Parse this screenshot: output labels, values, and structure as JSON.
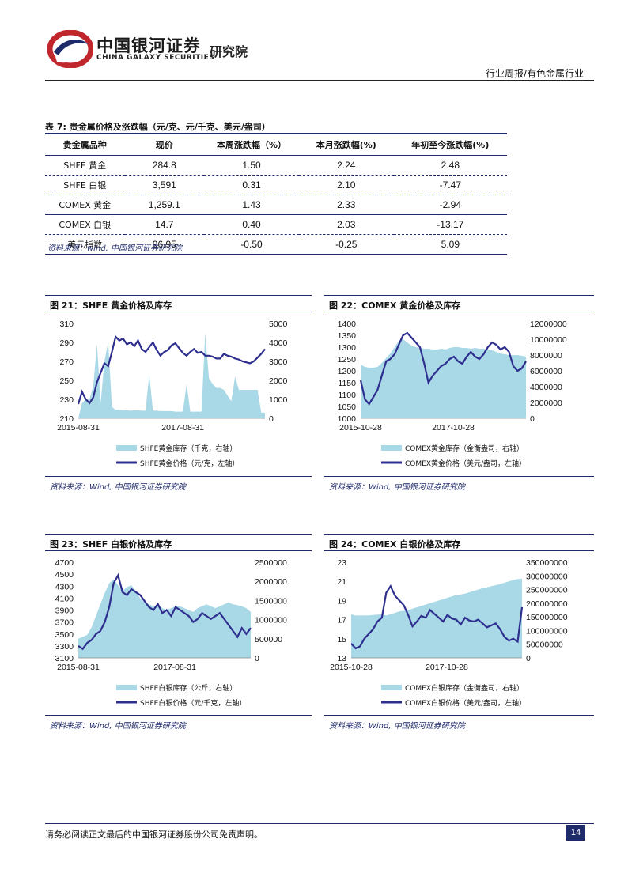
{
  "header": {
    "brand_cn": "中国银河证券",
    "brand_en": "CHINA GALAXY SECURITIES",
    "institute": "研究院",
    "report_type": "行业周报/有色金属行业"
  },
  "table": {
    "caption": "表 7: 贵金属价格及涨跌幅（元/克、元/千克、美元/盎司）",
    "headers": [
      "贵金属品种",
      "现价",
      "本周涨跌幅（%）",
      "本月涨跌幅(%)",
      "年初至今涨跌幅(%)"
    ],
    "rows": [
      [
        "SHFE 黄金",
        "284.8",
        "1.50",
        "2.24",
        "2.48"
      ],
      [
        "SHFE 白银",
        "3,591",
        "0.31",
        "2.10",
        "-7.47"
      ],
      [
        "COMEX 黄金",
        "1,259.1",
        "1.43",
        "2.33",
        "-2.94"
      ],
      [
        "COMEX 白银",
        "14.7",
        "0.40",
        "2.03",
        "-13.17"
      ],
      [
        "美元指数",
        "96.95",
        "-0.50",
        "-0.25",
        "5.09"
      ]
    ],
    "source": "资料来源：wind, 中国银河证券研究院"
  },
  "figures": [
    {
      "title": "图 21：SHFE 黄金价格及库存",
      "source": "资料来源：Wind, 中国银河证券研究院",
      "legend_area": "SHFE黄金库存（千克，右轴）",
      "legend_line": "SHFE黄金价格（元/克，左轴）",
      "chart_data": {
        "type": "line",
        "left_axis": {
          "ticks": [
            "310",
            "290",
            "270",
            "250",
            "230",
            "210"
          ],
          "range": [
            210,
            310
          ]
        },
        "right_axis": {
          "ticks": [
            "5000",
            "4000",
            "3000",
            "2000",
            "1000",
            "0"
          ],
          "range": [
            0,
            5000
          ]
        },
        "x_ticks": [
          "2015-08-31",
          "2017-08-31"
        ],
        "series": [
          {
            "name": "SHFE黄金库存（千克，右轴）",
            "kind": "area",
            "values": [
              0,
              800,
              1000,
              1000,
              1700,
              3900,
              800,
              3000,
              4000,
              600,
              450,
              450,
              420,
              420,
              400,
              420,
              420,
              400,
              400,
              2300,
              400,
              400,
              380,
              380,
              380,
              380,
              350,
              350,
              350,
              1800,
              350,
              350,
              350,
              350,
              4500,
              2100,
              1800,
              1600,
              1600,
              1500,
              1200,
              900,
              2200,
              1500,
              1500,
              1500,
              1500,
              1500,
              1500,
              300,
              300
            ]
          },
          {
            "name": "SHFE黄金价格（元/克，左轴）",
            "kind": "line",
            "values": [
              225,
              238,
              230,
              226,
              232,
              248,
              258,
              268,
              265,
              280,
              296,
              292,
              294,
              288,
              290,
              286,
              292,
              283,
              280,
              285,
              290,
              282,
              276,
              280,
              282,
              287,
              289,
              284,
              279,
              276,
              280,
              283,
              279,
              280,
              276,
              276,
              275,
              273,
              273,
              278,
              276,
              275,
              273,
              272,
              270,
              269,
              268,
              270,
              274,
              278,
              283
            ]
          }
        ]
      }
    },
    {
      "title": "图 22：COMEX 黄金价格及库存",
      "source": "资料来源：Wind, 中国银河证券研究院",
      "legend_area": "COMEX黄金库存（金衡盎司，右轴）",
      "legend_line": "COMEX黄金价格（美元/盎司，左轴）",
      "chart_data": {
        "type": "line",
        "left_axis": {
          "ticks": [
            "1400",
            "1350",
            "1300",
            "1250",
            "1200",
            "1150",
            "1100",
            "1050",
            "1000"
          ],
          "range": [
            1000,
            1400
          ]
        },
        "right_axis": {
          "ticks": [
            "12000000",
            "10000000",
            "8000000",
            "6000000",
            "4000000",
            "2000000",
            "0"
          ],
          "range": [
            0,
            12000000
          ]
        },
        "x_ticks": [
          "2015-10-28",
          "2017-10-28"
        ],
        "series": [
          {
            "name": "COMEX黄金库存（金衡盎司，右轴）",
            "kind": "area",
            "values": [
              6800000,
              6500000,
              6400000,
              6400000,
              6500000,
              7000000,
              7600000,
              8200000,
              9000000,
              9800000,
              10000000,
              9600000,
              9200000,
              9000000,
              8900000,
              8800000,
              8800000,
              8700000,
              8700000,
              8800000,
              8700000,
              8900000,
              9000000,
              9000000,
              8900000,
              8900000,
              8800000,
              8900000,
              8800000,
              8800000,
              8700000,
              8600000,
              8400000,
              8200000,
              8100000,
              8000000,
              8000000,
              8000000,
              7900000,
              7800000
            ]
          },
          {
            "name": "COMEX黄金价格（美元/盎司，左轴）",
            "kind": "line",
            "values": [
              1160,
              1080,
              1060,
              1090,
              1120,
              1180,
              1240,
              1250,
              1270,
              1310,
              1350,
              1360,
              1340,
              1320,
              1300,
              1230,
              1150,
              1180,
              1200,
              1220,
              1230,
              1250,
              1260,
              1240,
              1230,
              1260,
              1280,
              1260,
              1250,
              1270,
              1300,
              1320,
              1310,
              1290,
              1300,
              1280,
              1220,
              1200,
              1210,
              1240
            ]
          }
        ]
      }
    },
    {
      "title": "图 23：SHEF 白银价格及库存",
      "source": "资料来源：Wind, 中国银河证券研究院",
      "legend_area": "SHFE白银库存（公斤，右轴）",
      "legend_line": "SHFE白银价格（元/千克，左轴）",
      "chart_data": {
        "type": "line",
        "left_axis": {
          "ticks": [
            "4700",
            "4500",
            "4300",
            "4100",
            "3900",
            "3700",
            "3500",
            "3300",
            "3100"
          ],
          "range": [
            3100,
            4700
          ]
        },
        "right_axis": {
          "ticks": [
            "2500000",
            "2000000",
            "1500000",
            "1000000",
            "500000",
            "0"
          ],
          "range": [
            0,
            2500000
          ]
        },
        "x_ticks": [
          "2015-08-31",
          "2017-08-31"
        ],
        "series": [
          {
            "name": "SHFE白银库存（公斤，右轴）",
            "kind": "area",
            "values": [
              500000,
              550000,
              600000,
              800000,
              1100000,
              1400000,
              1700000,
              1950000,
              2050000,
              1900000,
              1750000,
              1850000,
              1900000,
              1750000,
              1550000,
              1450000,
              1400000,
              1350000,
              1400000,
              1300000,
              1250000,
              1300000,
              1350000,
              1350000,
              1300000,
              1250000,
              1200000,
              1300000,
              1350000,
              1400000,
              1350000,
              1300000,
              1350000,
              1400000,
              1450000,
              1400000,
              1380000,
              1350000,
              1300000,
              1200000
            ]
          },
          {
            "name": "SHFE白银价格（元/千克，左轴）",
            "kind": "line",
            "values": [
              3300,
              3250,
              3350,
              3400,
              3500,
              3550,
              3700,
              3950,
              4350,
              4480,
              4200,
              4150,
              4250,
              4200,
              4150,
              4050,
              3950,
              3900,
              4000,
              3850,
              3900,
              3800,
              3950,
              3900,
              3850,
              3800,
              3700,
              3750,
              3850,
              3800,
              3750,
              3800,
              3850,
              3750,
              3650,
              3550,
              3450,
              3600,
              3500,
              3600
            ]
          }
        ]
      }
    },
    {
      "title": "图 24：COMEX 白银价格及库存",
      "source": "资料来源：Wind, 中国银河证券研究院",
      "legend_area": "COMEX白银库存（金衡盎司，右轴）",
      "legend_line": "COMEX白银价格（美元/盎司，左轴）",
      "chart_data": {
        "type": "line",
        "left_axis": {
          "ticks": [
            "23",
            "21",
            "19",
            "17",
            "15",
            "13"
          ],
          "range": [
            13,
            23
          ]
        },
        "right_axis": {
          "ticks": [
            "350000000",
            "300000000",
            "250000000",
            "200000000",
            "150000000",
            "100000000",
            "50000000",
            "0"
          ],
          "range": [
            0,
            350000000
          ]
        },
        "x_ticks": [
          "2015-10-28",
          "2017-10-28"
        ],
        "series": [
          {
            "name": "COMEX白银库存（金衡盎司，右轴）",
            "kind": "area",
            "values": [
              160000000,
              155000000,
              155000000,
              155000000,
              155000000,
              157000000,
              158000000,
              160000000,
              155000000,
              160000000,
              165000000,
              170000000,
              172000000,
              175000000,
              180000000,
              185000000,
              190000000,
              195000000,
              200000000,
              205000000,
              210000000,
              215000000,
              220000000,
              225000000,
              230000000,
              232000000,
              235000000,
              240000000,
              245000000,
              250000000,
              255000000,
              258000000,
              262000000,
              266000000,
              270000000,
              275000000,
              280000000,
              285000000,
              288000000,
              290000000
            ]
          },
          {
            "name": "COMEX白银价格（美元/盎司，左轴）",
            "kind": "line",
            "values": [
              14.5,
              14.0,
              14.2,
              15.0,
              15.5,
              16.0,
              16.8,
              17.2,
              19.8,
              20.5,
              19.5,
              19.0,
              18.5,
              17.5,
              16.3,
              16.8,
              17.4,
              17.2,
              18.0,
              17.6,
              17.2,
              16.8,
              17.5,
              17.1,
              17.0,
              16.5,
              17.2,
              16.9,
              16.8,
              17.0,
              16.6,
              16.2,
              16.4,
              16.6,
              16.0,
              15.2,
              14.8,
              15.0,
              14.7,
              18.3
            ]
          }
        ]
      }
    }
  ],
  "footer": {
    "disclaimer": "请务必阅读正文最后的中国银河证券股份公司免责声明。",
    "page_number": "14"
  }
}
